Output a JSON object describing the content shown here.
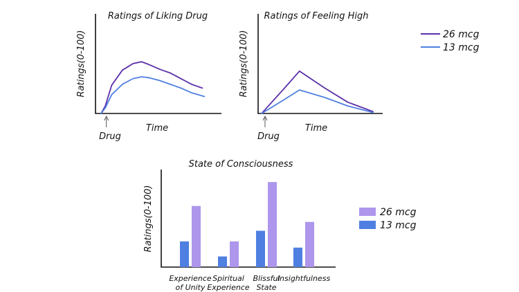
{
  "chart_data": [
    {
      "type": "line",
      "title": "Ratings of Liking Drug",
      "xlabel": "Time",
      "ylabel": "Ratings(0-100)",
      "marker_label": "Drug",
      "marker_x": 5,
      "xlim": [
        0,
        100
      ],
      "ylim": [
        0,
        100
      ],
      "series": [
        {
          "name": "26 mcg",
          "x": [
            0,
            4,
            10,
            20,
            30,
            38,
            45,
            55,
            65,
            75,
            85,
            95
          ],
          "y": [
            0,
            8,
            30,
            46,
            53,
            55,
            52,
            47,
            43,
            37,
            31,
            27
          ]
        },
        {
          "name": "13 mcg",
          "x": [
            0,
            4,
            10,
            20,
            30,
            38,
            45,
            55,
            65,
            75,
            85,
            97
          ],
          "y": [
            0,
            6,
            20,
            31,
            37,
            39,
            38,
            35,
            31,
            27,
            22,
            18
          ]
        }
      ]
    },
    {
      "type": "line",
      "title": "Ratings of Feeling High",
      "xlabel": "Time",
      "ylabel": "Ratings(0-100)",
      "marker_label": "Drug",
      "marker_x": 3,
      "xlim": [
        0,
        100
      ],
      "ylim": [
        0,
        100
      ],
      "series": [
        {
          "name": "26 mcg",
          "x": [
            0,
            20,
            33,
            55,
            75,
            97
          ],
          "y": [
            0,
            27,
            45,
            27,
            12,
            2
          ]
        },
        {
          "name": "13 mcg",
          "x": [
            0,
            20,
            33,
            55,
            75,
            97
          ],
          "y": [
            0,
            15,
            25,
            17,
            8,
            1
          ]
        }
      ]
    },
    {
      "type": "bar",
      "title": "State of Consciousness",
      "ylabel": "Ratings(0-100)",
      "categories": [
        [
          "Experience",
          "of Unity"
        ],
        [
          "Spiritual",
          "Experience"
        ],
        [
          "Blissful",
          "State"
        ],
        [
          "Insightfulness"
        ]
      ],
      "ylim": [
        0,
        100
      ],
      "series": [
        {
          "name": "13 mcg",
          "values": [
            29,
            12,
            41,
            22
          ]
        },
        {
          "name": "26 mcg",
          "values": [
            69,
            29,
            96,
            51
          ]
        }
      ]
    }
  ],
  "legends": {
    "lines": [
      {
        "label": "26 mcg",
        "color": "#5b2fa8"
      },
      {
        "label": "13 mcg",
        "color": "#4f7fe0"
      }
    ],
    "bars": [
      {
        "label": "26 mcg",
        "color": "#ad96ec"
      },
      {
        "label": "13 mcg",
        "color": "#4f7fe0"
      }
    ]
  },
  "colors": {
    "line_26": "#5b2fa8",
    "line_13": "#4f7fe0",
    "bar_26": "#ad96ec",
    "bar_13": "#4f7fe0"
  }
}
